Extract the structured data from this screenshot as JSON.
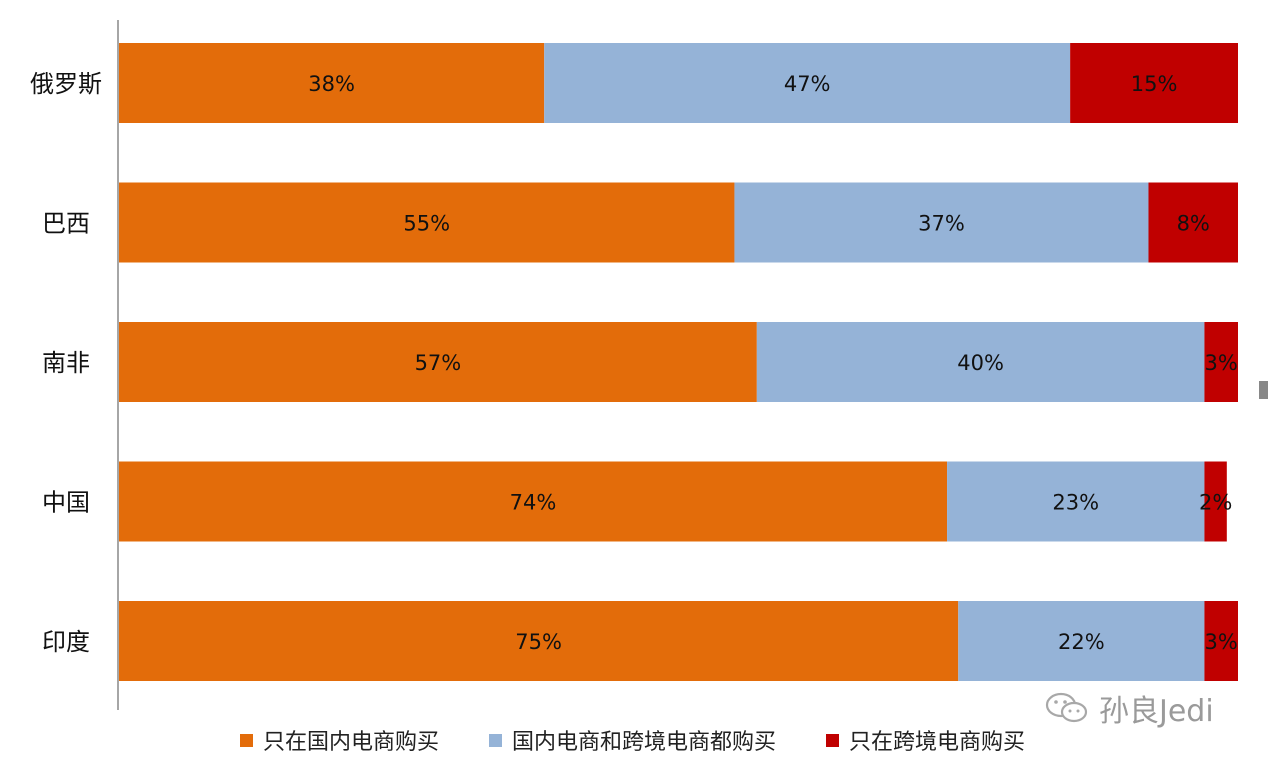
{
  "chart_data": {
    "type": "bar",
    "orientation": "horizontal",
    "stacked": true,
    "percent_stacked": true,
    "categories": [
      "俄罗斯",
      "巴西",
      "南非",
      "中国",
      "印度"
    ],
    "series": [
      {
        "name": "只在国内电商购买",
        "values": [
          38,
          55,
          57,
          74,
          75
        ],
        "color": "#E36C0A",
        "labels": [
          "38%",
          "55%",
          "57%",
          "74%",
          "75%"
        ]
      },
      {
        "name": "国内电商和跨境电商都购买",
        "values": [
          47,
          37,
          40,
          23,
          22
        ],
        "color": "#95B3D7",
        "labels": [
          "47%",
          "37%",
          "40%",
          "23%",
          "22%"
        ]
      },
      {
        "name": "只在跨境电商购买",
        "values": [
          15,
          8,
          3,
          2,
          3
        ],
        "color": "#C00000",
        "labels": [
          "15%",
          "8%",
          "3%",
          "2%",
          "3%"
        ]
      }
    ],
    "xlim": [
      0,
      100
    ],
    "grid": false,
    "legend_position": "bottom"
  },
  "watermark": {
    "text": "孙良Jedi",
    "icon": "wechat-icon"
  }
}
